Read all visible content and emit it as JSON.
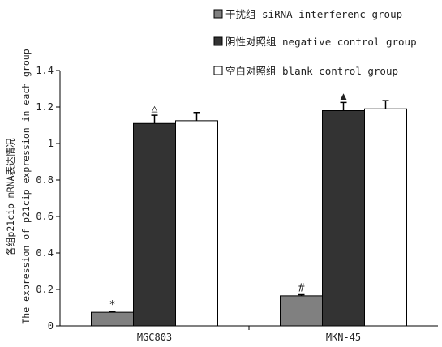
{
  "chart_data": {
    "type": "bar",
    "ylabel_cn": "各组p21cip mRNA表达情况",
    "ylabel_en": "The expression of p21cip expression in each group",
    "ylim": [
      0,
      1.4
    ],
    "yticks": [
      "0",
      "0.2",
      "0.4",
      "0.6",
      "0.8",
      "1",
      "1.2",
      "1.4"
    ],
    "categories": [
      "MGC803",
      "MKN-45"
    ],
    "series": [
      {
        "name": "干扰组 siRNA interferenc group",
        "color": "#808080",
        "values": [
          0.075,
          0.165
        ],
        "errors": [
          0.004,
          0.006
        ],
        "marks": [
          "*",
          "#"
        ]
      },
      {
        "name": "阴性对照组 negative control group",
        "color": "#333333",
        "values": [
          1.11,
          1.18
        ],
        "errors": [
          0.045,
          0.045
        ],
        "marks": [
          "△",
          "▲"
        ]
      },
      {
        "name": "空白对照组  blank control group",
        "color": "#ffffff",
        "values": [
          1.125,
          1.19
        ],
        "errors": [
          0.045,
          0.045
        ],
        "marks": [
          "",
          ""
        ]
      }
    ],
    "legend_position": "top-right",
    "grid": false
  }
}
